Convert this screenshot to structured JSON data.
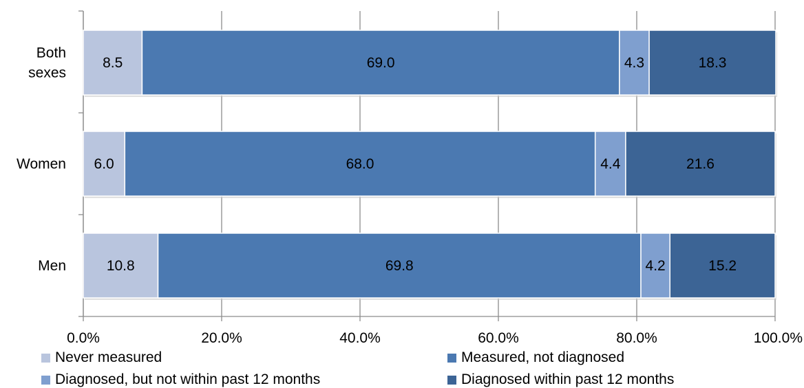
{
  "chart_data": {
    "type": "bar",
    "orientation": "horizontal",
    "stacked": true,
    "categories": [
      "Both sexes",
      "Women",
      "Men"
    ],
    "category_lines": [
      [
        "Both",
        "sexes"
      ],
      [
        "Women"
      ],
      [
        "Men"
      ]
    ],
    "series": [
      {
        "name": "Never measured",
        "values": [
          8.5,
          6.0,
          10.8
        ],
        "color": "#b9c5de"
      },
      {
        "name": "Measured, not diagnosed",
        "values": [
          69.0,
          68.0,
          69.8
        ],
        "color": "#4b79b1"
      },
      {
        "name": "Diagnosed, but not within past 12 months",
        "values": [
          4.3,
          4.4,
          4.2
        ],
        "color": "#7f9fcf"
      },
      {
        "name": "Diagnosed within past 12 months",
        "values": [
          18.3,
          21.6,
          15.2
        ],
        "color": "#3c6495"
      }
    ],
    "data_labels": [
      [
        "8.5",
        "6.0",
        "10.8"
      ],
      [
        "69.0",
        "68.0",
        "69.8"
      ],
      [
        "4.3",
        "4.4",
        "4.2"
      ],
      [
        "18.3",
        "21.6",
        "15.2"
      ]
    ],
    "xlim": [
      0,
      100
    ],
    "xticks": [
      0,
      20,
      40,
      60,
      80,
      100
    ],
    "xtick_labels": [
      "0.0%",
      "20.0%",
      "40.0%",
      "60.0%",
      "80.0%",
      "100.0%"
    ],
    "grid": true,
    "legend_position": "bottom"
  }
}
